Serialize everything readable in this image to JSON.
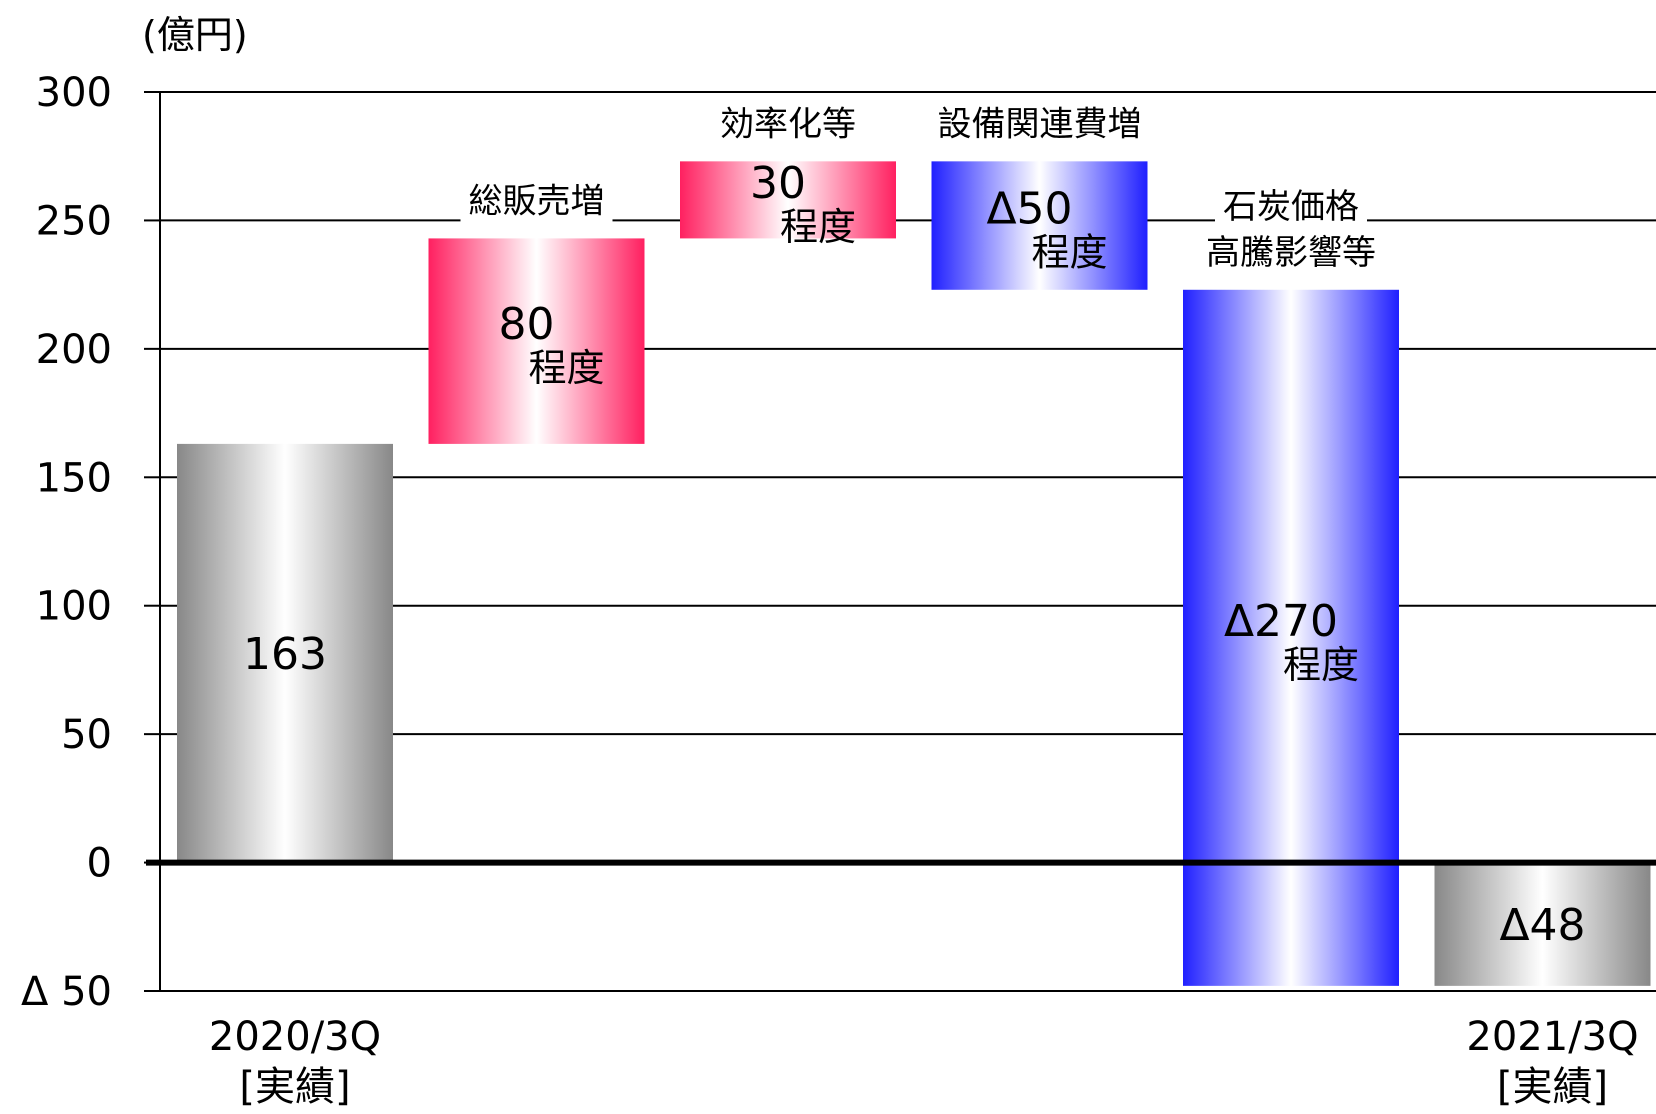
{
  "chart_data": {
    "type": "bar",
    "subtype": "waterfall",
    "unit_label": "(億円)",
    "ylim": [
      -50,
      300
    ],
    "yticks": [
      {
        "value": 300,
        "label": "300"
      },
      {
        "value": 250,
        "label": "250"
      },
      {
        "value": 200,
        "label": "200"
      },
      {
        "value": 150,
        "label": "150"
      },
      {
        "value": 100,
        "label": "100"
      },
      {
        "value": 50,
        "label": "50"
      },
      {
        "value": 0,
        "label": "0"
      },
      {
        "value": -50,
        "label": "Δ 50"
      }
    ],
    "grid": true,
    "legend": "none",
    "bars": [
      {
        "kind": "total",
        "category": [
          "2020/3Q",
          "[実績]"
        ],
        "start": 0,
        "end": 163,
        "value_label": "163",
        "sub_label": "",
        "color": "#888888"
      },
      {
        "kind": "increase",
        "name": [
          "総販売増"
        ],
        "start": 163,
        "end": 243,
        "value_label": "80",
        "sub_label": "程度",
        "color": "#ff2060"
      },
      {
        "kind": "increase",
        "name": [
          "効率化等"
        ],
        "start": 243,
        "end": 273,
        "value_label": "30",
        "sub_label": "程度",
        "color": "#ff2060"
      },
      {
        "kind": "decrease",
        "name": [
          "設備関連費増"
        ],
        "start": 273,
        "end": 223,
        "value_label": "Δ50",
        "sub_label": "程度",
        "color": "#2020ff"
      },
      {
        "kind": "decrease",
        "name": [
          "石炭価格",
          "高騰影響等"
        ],
        "start": 223,
        "end": -48,
        "value_label": "Δ270",
        "sub_label": "程度",
        "color": "#2020ff"
      },
      {
        "kind": "total",
        "category": [
          "2021/3Q",
          "[実績]"
        ],
        "start": 0,
        "end": -48,
        "value_label": "Δ48",
        "sub_label": "",
        "color": "#888888"
      }
    ]
  }
}
